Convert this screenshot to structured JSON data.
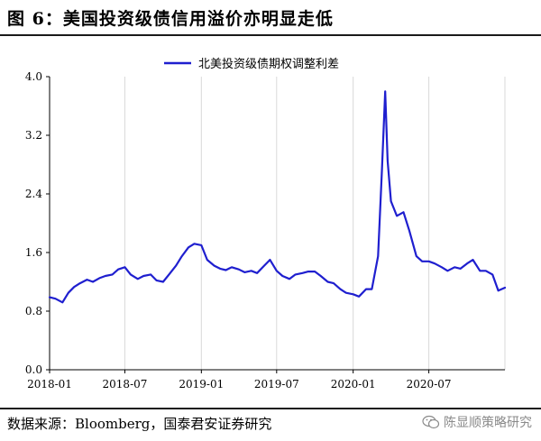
{
  "figure": {
    "title": "图 6：美国投资级债信用溢价亦明显走低",
    "source": "数据来源：Bloomberg，国泰君安证券研究",
    "watermark": "陈显顺策略研究"
  },
  "colors": {
    "series": "#1f1fcf",
    "axis": "#000000",
    "grid": "#d9d9d9"
  },
  "icons": {
    "watermark_icon": "wechat-icon"
  },
  "chart_data": {
    "type": "line",
    "title": "",
    "xlabel": "",
    "ylabel": "",
    "ylim": [
      0.0,
      4.0
    ],
    "yticks": [
      "0.0",
      "0.8",
      "1.6",
      "2.4",
      "3.2",
      "4.0"
    ],
    "xticks": [
      "2018-01",
      "2018-07",
      "2019-01",
      "2019-07",
      "2020-01",
      "2020-07"
    ],
    "xlim": [
      "2018-01",
      "2020-12"
    ],
    "grid": "vertical",
    "legend": "top-center",
    "series": [
      {
        "name": "北美投资级债期权调整利差",
        "color": "#1f1fcf",
        "x": [
          "2018-01-01",
          "2018-01-15",
          "2018-02-01",
          "2018-02-15",
          "2018-03-01",
          "2018-03-15",
          "2018-04-01",
          "2018-04-15",
          "2018-05-01",
          "2018-05-15",
          "2018-06-01",
          "2018-06-15",
          "2018-07-01",
          "2018-07-15",
          "2018-08-01",
          "2018-08-15",
          "2018-09-01",
          "2018-09-15",
          "2018-10-01",
          "2018-10-15",
          "2018-11-01",
          "2018-11-15",
          "2018-12-01",
          "2018-12-15",
          "2019-01-01",
          "2019-01-15",
          "2019-02-01",
          "2019-02-15",
          "2019-03-01",
          "2019-03-15",
          "2019-04-01",
          "2019-04-15",
          "2019-05-01",
          "2019-05-15",
          "2019-06-01",
          "2019-06-15",
          "2019-07-01",
          "2019-07-15",
          "2019-08-01",
          "2019-08-15",
          "2019-09-01",
          "2019-09-15",
          "2019-10-01",
          "2019-10-15",
          "2019-11-01",
          "2019-11-15",
          "2019-12-01",
          "2019-12-15",
          "2020-01-01",
          "2020-01-15",
          "2020-02-01",
          "2020-02-15",
          "2020-03-01",
          "2020-03-10",
          "2020-03-18",
          "2020-03-24",
          "2020-04-01",
          "2020-04-15",
          "2020-05-01",
          "2020-05-15",
          "2020-06-01",
          "2020-06-15",
          "2020-07-01",
          "2020-07-15",
          "2020-08-01",
          "2020-08-15",
          "2020-09-01",
          "2020-09-15",
          "2020-10-01",
          "2020-10-15",
          "2020-11-01",
          "2020-11-15",
          "2020-12-01",
          "2020-12-15",
          "2020-12-31"
        ],
        "y": [
          0.99,
          0.97,
          0.92,
          1.05,
          1.13,
          1.18,
          1.23,
          1.2,
          1.25,
          1.28,
          1.3,
          1.37,
          1.4,
          1.3,
          1.24,
          1.28,
          1.3,
          1.22,
          1.2,
          1.3,
          1.42,
          1.55,
          1.67,
          1.72,
          1.7,
          1.5,
          1.42,
          1.38,
          1.36,
          1.4,
          1.37,
          1.33,
          1.35,
          1.32,
          1.42,
          1.5,
          1.35,
          1.28,
          1.24,
          1.3,
          1.32,
          1.34,
          1.34,
          1.28,
          1.2,
          1.18,
          1.1,
          1.05,
          1.03,
          1.0,
          1.1,
          1.1,
          1.55,
          2.7,
          3.8,
          2.85,
          2.3,
          2.1,
          2.15,
          1.9,
          1.55,
          1.48,
          1.48,
          1.45,
          1.4,
          1.35,
          1.4,
          1.38,
          1.45,
          1.5,
          1.35,
          1.35,
          1.3,
          1.08,
          1.12
        ]
      }
    ]
  }
}
